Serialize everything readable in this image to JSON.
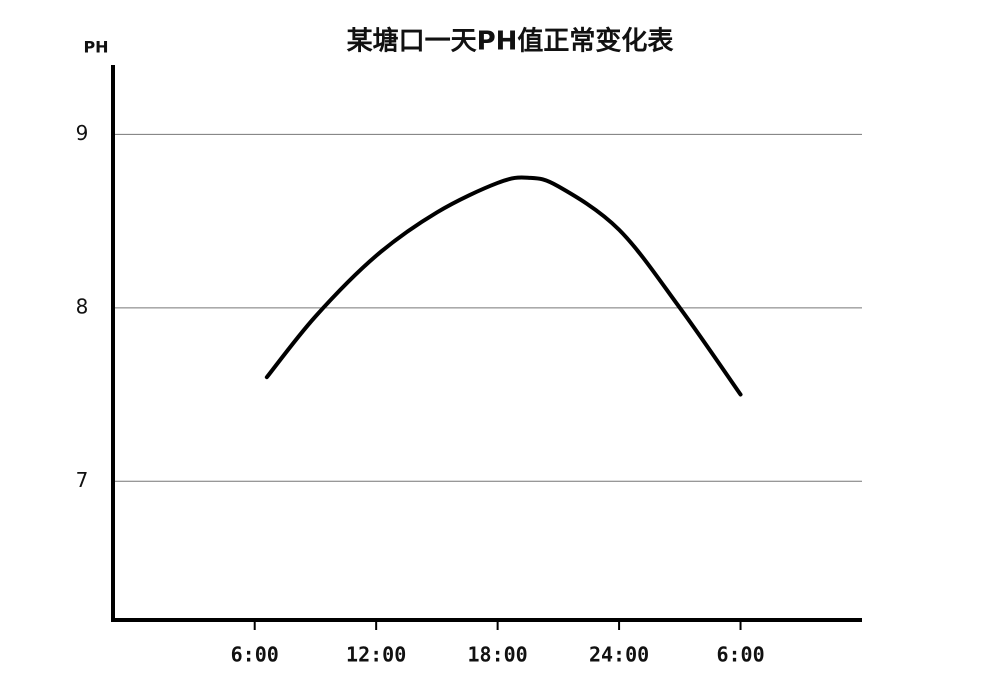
{
  "chart_data": {
    "type": "line",
    "title": "某塘口一天PH值正常变化表",
    "y_label": "PH",
    "x": [
      6.6,
      9,
      12,
      15,
      18,
      19.5,
      21,
      24,
      27,
      30
    ],
    "series": [
      {
        "name": "PH",
        "color": "#000000",
        "values": [
          7.6,
          7.95,
          8.3,
          8.55,
          8.72,
          8.75,
          8.7,
          8.45,
          8.0,
          7.5
        ]
      }
    ],
    "xlim": [
      -1,
      36
    ],
    "ylim": [
      6.2,
      9.4
    ],
    "xticks": [
      {
        "value": 6,
        "label": "6:00"
      },
      {
        "value": 12,
        "label": "12:00"
      },
      {
        "value": 18,
        "label": "18:00"
      },
      {
        "value": 24,
        "label": "24:00"
      },
      {
        "value": 30,
        "label": "6:00"
      }
    ],
    "yticks": [
      7,
      8,
      9
    ],
    "grid": true
  }
}
